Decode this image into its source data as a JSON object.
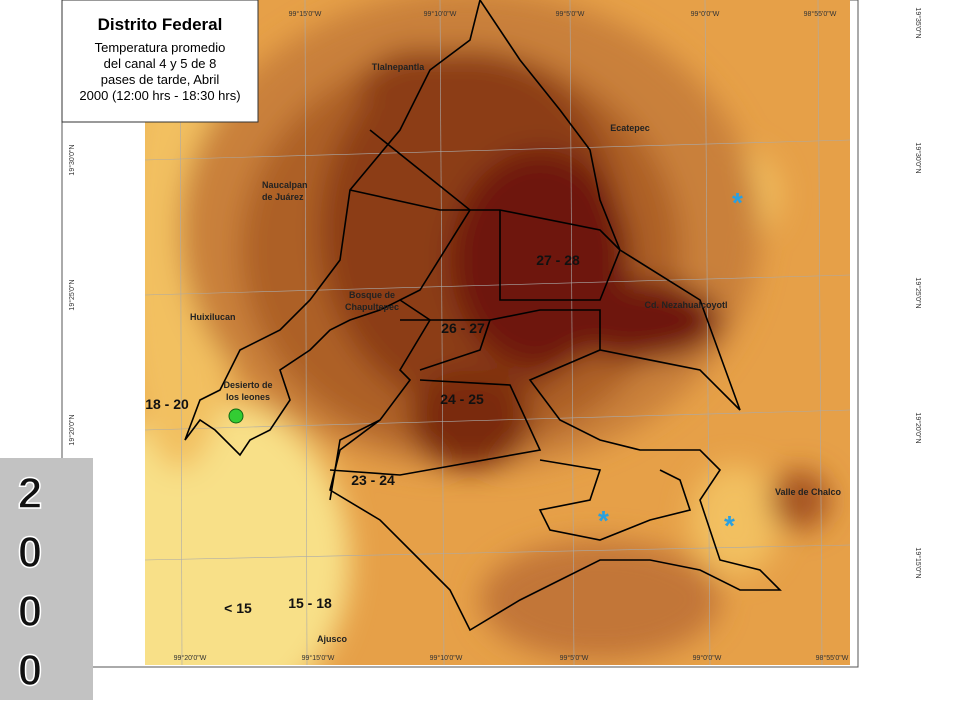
{
  "title_box": {
    "title": "Distrito Federal",
    "lines": [
      "Temperatura promedio",
      "del canal 4 y 5 de 8",
      "pases de  tarde,  Abril",
      "2000 (12:00 hrs - 18:30 hrs)"
    ]
  },
  "places": [
    {
      "label": [
        "Tlalnepantla"
      ]
    },
    {
      "label": [
        "Ecatepec"
      ]
    },
    {
      "label": [
        "Naucalpan",
        "de Juárez"
      ]
    },
    {
      "label": [
        "Bosque de",
        "Chapultepec"
      ]
    },
    {
      "label": [
        "Huixilucan"
      ]
    },
    {
      "label": [
        "Cd. Nezahualcoyotl"
      ]
    },
    {
      "label": [
        "Desierto de",
        "los leones"
      ]
    },
    {
      "label": [
        "Valle de Chalco"
      ]
    },
    {
      "label": [
        "Ajusco"
      ]
    }
  ],
  "ranges": [
    "27 - 28",
    "26 - 27",
    "24 - 25",
    "23 - 24",
    "18 - 20",
    "15 - 18",
    "< 15"
  ],
  "coords": {
    "top": [
      "99°15'0\"W",
      "99°10'0\"W",
      "99°5'0\"W",
      "99°0'0\"W",
      "98°55'0\"W"
    ],
    "bottom": [
      "99°20'0\"W",
      "99°15'0\"W",
      "99°10'0\"W",
      "99°5'0\"W",
      "99°0'0\"W",
      "98°55'0\"W"
    ],
    "left": [
      "19°30'0\"N",
      "19°25'0\"N",
      "19°20'0\"N"
    ],
    "right": [
      "19°35'0\"N",
      "19°30'0\"N",
      "19°25'0\"N",
      "19°20'0\"N",
      "19°15'0\"N"
    ]
  },
  "year_digits": [
    "2",
    "0",
    "0",
    "0"
  ]
}
